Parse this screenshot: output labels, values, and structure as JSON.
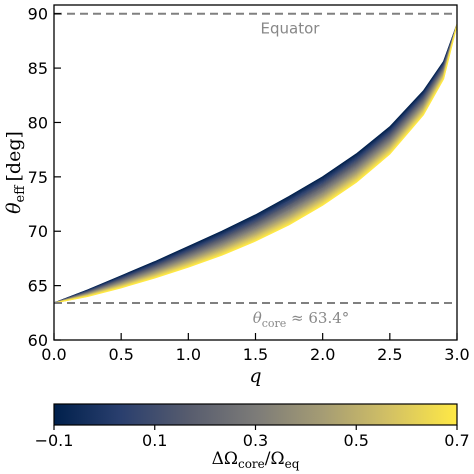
{
  "chart_data": {
    "type": "line",
    "xlabel": "q",
    "ylabel_symbol": "θ",
    "ylabel_sub": "eff",
    "ylabel_unit": "[deg]",
    "xlim": [
      0.0,
      3.0
    ],
    "ylim": [
      60,
      90.8
    ],
    "xticks": [
      "0.0",
      "0.5",
      "1.0",
      "1.5",
      "2.0",
      "2.5",
      "3.0"
    ],
    "yticks": [
      "60",
      "65",
      "70",
      "75",
      "80",
      "85",
      "90"
    ],
    "reference_lines": [
      {
        "y": 90.0,
        "label": "Equator",
        "style": "dashed",
        "color": "#808080"
      },
      {
        "y": 63.4,
        "label_symbol": "θ",
        "label_sub": "core",
        "label_value": " ≈ 63.4°",
        "style": "dashed",
        "color": "#808080"
      }
    ],
    "series_x": [
      0.0,
      0.25,
      0.5,
      0.75,
      1.0,
      1.25,
      1.5,
      1.75,
      2.0,
      2.25,
      2.5,
      2.75,
      2.9,
      3.0
    ],
    "series_top_y": [
      63.4,
      64.6,
      65.9,
      67.2,
      68.6,
      70.0,
      71.5,
      73.2,
      75.0,
      77.1,
      79.6,
      82.9,
      85.6,
      89.0
    ],
    "series_bottom_y": [
      63.4,
      64.0,
      64.8,
      65.7,
      66.7,
      67.8,
      69.1,
      70.6,
      72.4,
      74.5,
      77.1,
      80.7,
      84.0,
      89.0
    ],
    "series_count": 30,
    "colormap": "cividis",
    "colormap_stops": [
      "#00204c",
      "#2a3f6e",
      "#575c6e",
      "#7c7b78",
      "#a59c74",
      "#d3c164",
      "#ffe945"
    ],
    "colorbar": {
      "label_delta": "ΔΩ",
      "label_num_sub": "core",
      "label_den": "Ω",
      "label_den_sub": "eq",
      "range": [
        -0.1,
        0.7
      ],
      "ticks": [
        -0.1,
        0.1,
        0.3,
        0.5,
        0.7
      ],
      "tick_labels": [
        "−0.1",
        "0.1",
        "0.3",
        "0.5",
        "0.7"
      ]
    }
  }
}
